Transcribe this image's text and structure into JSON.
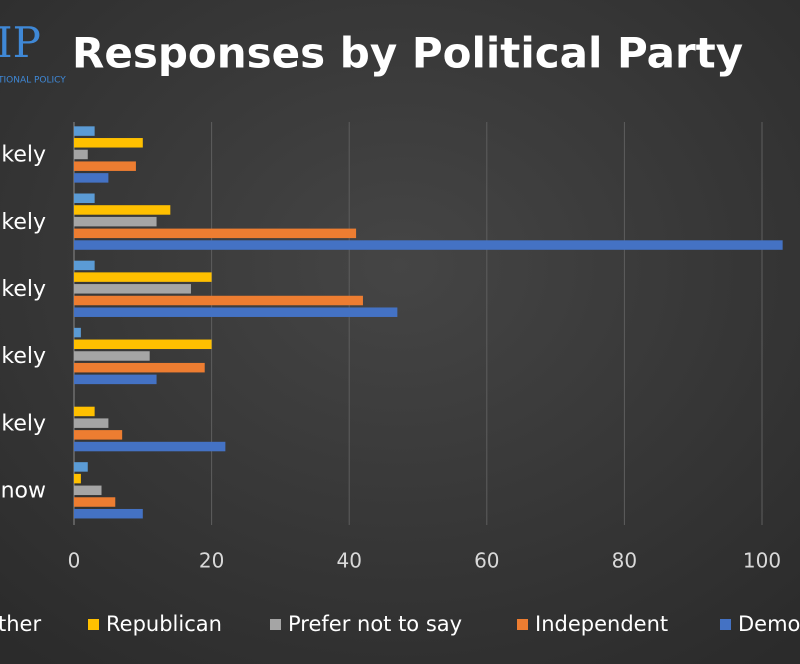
{
  "logo": {
    "mark": "IP",
    "caption": "TIONAL POLICY"
  },
  "chart_data": {
    "type": "bar",
    "orientation": "horizontal",
    "title": "Responses by Political Party",
    "categories": [
      "kely",
      "ikely",
      "kely",
      "ikely",
      "kely",
      "now"
    ],
    "series": [
      {
        "name": "ther",
        "color": "#5b9bd5",
        "values": [
          3,
          3,
          3,
          1,
          0,
          2
        ]
      },
      {
        "name": "Republican",
        "color": "#ffc000",
        "values": [
          10,
          14,
          20,
          20,
          3,
          1
        ]
      },
      {
        "name": "Prefer not to say",
        "color": "#a5a5a5",
        "values": [
          2,
          12,
          17,
          11,
          5,
          4
        ]
      },
      {
        "name": "Independent",
        "color": "#ed7d31",
        "values": [
          9,
          41,
          42,
          19,
          7,
          6
        ]
      },
      {
        "name": "Demo",
        "color": "#4472c4",
        "values": [
          5,
          103,
          47,
          12,
          22,
          10
        ]
      }
    ],
    "xlim": [
      0,
      100
    ],
    "xticks": [
      0,
      20,
      40,
      60,
      80,
      100
    ],
    "grid": true
  }
}
